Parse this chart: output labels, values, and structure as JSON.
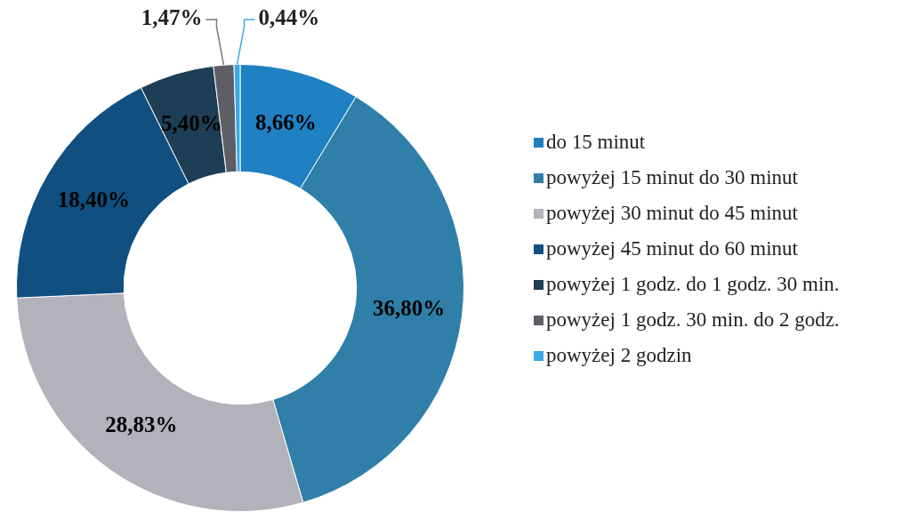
{
  "chart_data": {
    "type": "donut",
    "categories": [
      "do 15 minut",
      "powyżej 15 minut do 30 minut",
      "powyżej 30 minut do 45 minut",
      "powyżej 45 minut do 60 minut",
      "powyżej 1 godz. do 1 godz. 30 min.",
      "powyżej 1 godz. 30 min. do 2 godz.",
      "powyżej 2 godzin"
    ],
    "values": [
      8.66,
      36.8,
      28.83,
      18.4,
      5.4,
      1.47,
      0.44
    ],
    "colors": [
      "#1f80c2",
      "#2f7fa8",
      "#b2b2ba",
      "#104f80",
      "#1d3e54",
      "#5e5e66",
      "#3ba9e2"
    ],
    "value_labels": [
      "8,66%",
      "36,80%",
      "28,83%",
      "18,40%",
      "5,40%",
      "1,47%",
      "0,44%"
    ],
    "legend": "right"
  }
}
